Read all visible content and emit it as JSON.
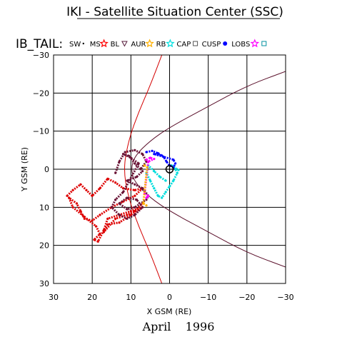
{
  "chart_data": {
    "type": "scatter",
    "title": "IKI - Satellite Situation Center (SSC)",
    "subtitle": "IB_TAIL:",
    "xlabel": "X GSM (RE)",
    "ylabel": "Y GSM (RE)",
    "xlim": [
      30,
      -30
    ],
    "ylim": [
      30,
      -30
    ],
    "x_ticks": [
      "30",
      "20",
      "10",
      "0",
      "−10",
      "−20",
      "−30"
    ],
    "y_ticks": [
      "−30",
      "−20",
      "−10",
      "0",
      "10",
      "20",
      "30"
    ],
    "grid": true,
    "date_label": "April    1996",
    "legend": [
      {
        "label": "SW",
        "marker": "dot",
        "color": "#000000"
      },
      {
        "label": "MS",
        "marker": "star",
        "color": "#ff0000"
      },
      {
        "label": "BL",
        "marker": "triangle",
        "color": "#551a3a"
      },
      {
        "label": "AUR",
        "marker": "star",
        "color": "#ffb000"
      },
      {
        "label": "RB",
        "marker": "star",
        "color": "#00e0e0"
      },
      {
        "label": "CAP",
        "marker": "square",
        "color": "#555555"
      },
      {
        "label": "CUSP",
        "marker": "dot",
        "color": "#0000ff"
      },
      {
        "label": "LOBS",
        "marker": "star",
        "color": "#ff00ff"
      },
      {
        "label": "",
        "marker": "square",
        "color": "#0090a0"
      }
    ],
    "boundaries": [
      {
        "name": "bow-shock",
        "color": "#d40000",
        "points": [
          [
            2,
            30
          ],
          [
            5,
            22
          ],
          [
            8,
            15
          ],
          [
            10.5,
            8
          ],
          [
            12,
            0
          ],
          [
            10.5,
            -8
          ],
          [
            8,
            -15
          ],
          [
            5,
            -22
          ],
          [
            2,
            -30
          ]
        ]
      },
      {
        "name": "magnetopause",
        "color": "#5a0f2a",
        "points": [
          [
            -30,
            25.7
          ],
          [
            -20,
            21.9
          ],
          [
            -10,
            16.5
          ],
          [
            0,
            11
          ],
          [
            5,
            7.5
          ],
          [
            9,
            3.5
          ],
          [
            10,
            0
          ],
          [
            9,
            -3.5
          ],
          [
            5,
            -7.5
          ],
          [
            0,
            -11
          ],
          [
            -10,
            -16.5
          ],
          [
            -20,
            -21.9
          ],
          [
            -30,
            -25.7
          ]
        ]
      }
    ],
    "series": [
      {
        "color": "#dd0000",
        "points": [
          [
            26.5,
            7
          ],
          [
            25,
            5.5
          ],
          [
            23,
            4
          ],
          [
            21.5,
            5.5
          ],
          [
            20,
            7
          ],
          [
            18,
            5
          ],
          [
            16,
            2.5
          ],
          [
            14,
            3.5
          ],
          [
            12,
            5
          ],
          [
            9,
            5.5
          ],
          [
            7,
            5
          ],
          [
            9,
            7
          ],
          [
            12,
            8.5
          ],
          [
            15,
            10
          ],
          [
            18,
            12
          ],
          [
            20,
            13.5
          ],
          [
            22,
            13
          ],
          [
            23,
            11
          ],
          [
            24,
            9
          ],
          [
            26,
            7.5
          ],
          [
            25,
            10
          ],
          [
            22,
            12.5
          ],
          [
            19,
            15
          ],
          [
            18,
            17
          ],
          [
            19.5,
            18.5
          ],
          [
            18.5,
            19
          ],
          [
            17,
            16
          ],
          [
            16,
            13
          ],
          [
            13,
            12
          ],
          [
            10,
            11
          ],
          [
            7,
            10
          ],
          [
            10,
            12
          ],
          [
            13,
            14
          ],
          [
            16,
            14.5
          ],
          [
            17,
            16.5
          ],
          [
            14,
            13
          ],
          [
            11,
            12
          ],
          [
            9,
            11
          ],
          [
            7,
            9
          ]
        ]
      },
      {
        "color": "#6a1436",
        "points": [
          [
            14,
            1
          ],
          [
            13,
            -2
          ],
          [
            11.5,
            -4.5
          ],
          [
            9,
            -5
          ],
          [
            7,
            -4
          ],
          [
            6,
            -2
          ],
          [
            7.5,
            0
          ],
          [
            9,
            -1.5
          ],
          [
            10.5,
            -3.5
          ],
          [
            12,
            -4
          ],
          [
            10,
            -3
          ],
          [
            8,
            -1.5
          ],
          [
            12,
            6
          ],
          [
            14,
            8
          ],
          [
            15,
            10
          ],
          [
            13,
            12
          ],
          [
            11,
            13
          ],
          [
            9,
            12
          ],
          [
            7,
            10
          ],
          [
            8.5,
            8
          ],
          [
            11,
            7.5
          ],
          [
            13,
            9
          ],
          [
            11,
            10.5
          ],
          [
            9,
            10
          ],
          [
            6,
            8
          ],
          [
            5.5,
            7
          ],
          [
            7,
            5
          ],
          [
            9,
            4
          ],
          [
            11,
            3
          ],
          [
            8.5,
            2
          ],
          [
            7,
            0.5
          ]
        ]
      },
      {
        "color": "#00dcdc",
        "points": [
          [
            1,
            3
          ],
          [
            2.5,
            2
          ],
          [
            4,
            0.5
          ],
          [
            5.5,
            -1
          ],
          [
            6,
            1
          ],
          [
            5,
            3
          ],
          [
            4,
            5
          ],
          [
            3,
            7
          ],
          [
            2,
            7.5
          ],
          [
            1,
            6
          ],
          [
            0,
            4.5
          ],
          [
            -1,
            3
          ],
          [
            -2,
            1
          ],
          [
            -1.5,
            0
          ],
          [
            -0.5,
            -1
          ],
          [
            -2.3,
            0.2
          ]
        ]
      },
      {
        "color": "#0000ff",
        "points": [
          [
            6,
            -4.5
          ],
          [
            4.5,
            -4.8
          ],
          [
            3,
            -4.2
          ],
          [
            1.5,
            -3.2
          ],
          [
            0.8,
            -2
          ],
          [
            0,
            -1
          ],
          [
            -1,
            -0.5
          ],
          [
            -1.5,
            -1.5
          ],
          [
            -1,
            -2.5
          ],
          [
            4,
            -4
          ],
          [
            2,
            -3.6
          ]
        ]
      },
      {
        "color": "#ff00ff",
        "points": [
          [
            6,
            -2.5
          ],
          [
            5,
            -3
          ],
          [
            4,
            -2.7
          ],
          [
            5.5,
            -2
          ],
          [
            6.5,
            6.5
          ],
          [
            5.5,
            7
          ],
          [
            6,
            7.5
          ]
        ]
      },
      {
        "color": "#ffb000",
        "points": [
          [
            6.5,
            -1
          ],
          [
            5.8,
            -0.5
          ],
          [
            6.8,
            9
          ],
          [
            6,
            9.5
          ]
        ]
      }
    ]
  }
}
